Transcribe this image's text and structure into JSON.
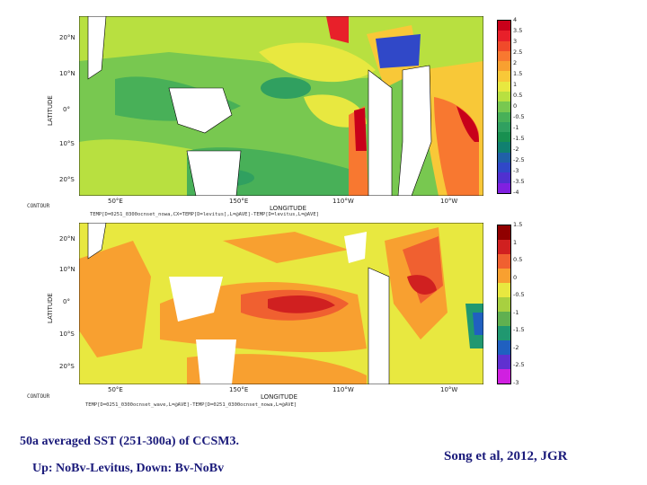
{
  "top_panel": {
    "lat_ticks": [
      "20°N",
      "10°N",
      "0°",
      "10°S",
      "20°S"
    ],
    "lon_ticks": [
      "50°E",
      "150°E",
      "110°W",
      "10°W"
    ],
    "xlabel": "LONGITUDE",
    "ylabel": "LATITUDE",
    "header_line1": "CONTOUR",
    "header_line2": "TEMP[D=0251_0300ocnset_nowa,CX=TEMP[D=levitus],L=@AVE]-TEMP[D=levitus,L=@AVE]",
    "colorbar_labels": [
      "4",
      "3.5",
      "3",
      "2.5",
      "2",
      "1.5",
      "1",
      "0.5",
      "0",
      "-0.5",
      "-1",
      "-1.5",
      "-2",
      "-2.5",
      "-3",
      "-3.5",
      "-4"
    ],
    "colorbar_colors": [
      "#c8001a",
      "#e8202a",
      "#f04a2a",
      "#f87830",
      "#f8a030",
      "#f8c838",
      "#e8e840",
      "#b8e040",
      "#78c850",
      "#48b058",
      "#30a060",
      "#189050",
      "#108070",
      "#2060a8",
      "#3048c8",
      "#5030d0",
      "#8020e0"
    ]
  },
  "bottom_panel": {
    "lat_ticks": [
      "20°N",
      "10°N",
      "0°",
      "10°S",
      "20°S"
    ],
    "lon_ticks": [
      "50°E",
      "150°E",
      "110°W",
      "10°W"
    ],
    "xlabel": "LONGITUDE",
    "ylabel": "LATITUDE",
    "header_line1": "CONTOUR",
    "header_line2": "TEMP[D=0251_0300ocnset_wave,L=@AVE]-TEMP[D=0251_0300ocnset_nowa,L=@AVE]",
    "colorbar_labels": [
      "1.5",
      "1",
      "0.5",
      "0",
      "-0.5",
      "-1",
      "-1.5",
      "-2",
      "-2.5",
      "-3"
    ],
    "colorbar_colors": [
      "#900000",
      "#d02020",
      "#f06030",
      "#f8a030",
      "#e8e840",
      "#a8d040",
      "#60b050",
      "#209870",
      "#2060c0",
      "#6030d0",
      "#d020e0"
    ]
  },
  "caption": {
    "title": "50a averaged SST (251-300a) of CCSM3.",
    "subtitle": "Up: NoBv-Levitus, Down: Bv-NoBv",
    "citation": "Song et al, 2012, JGR"
  }
}
